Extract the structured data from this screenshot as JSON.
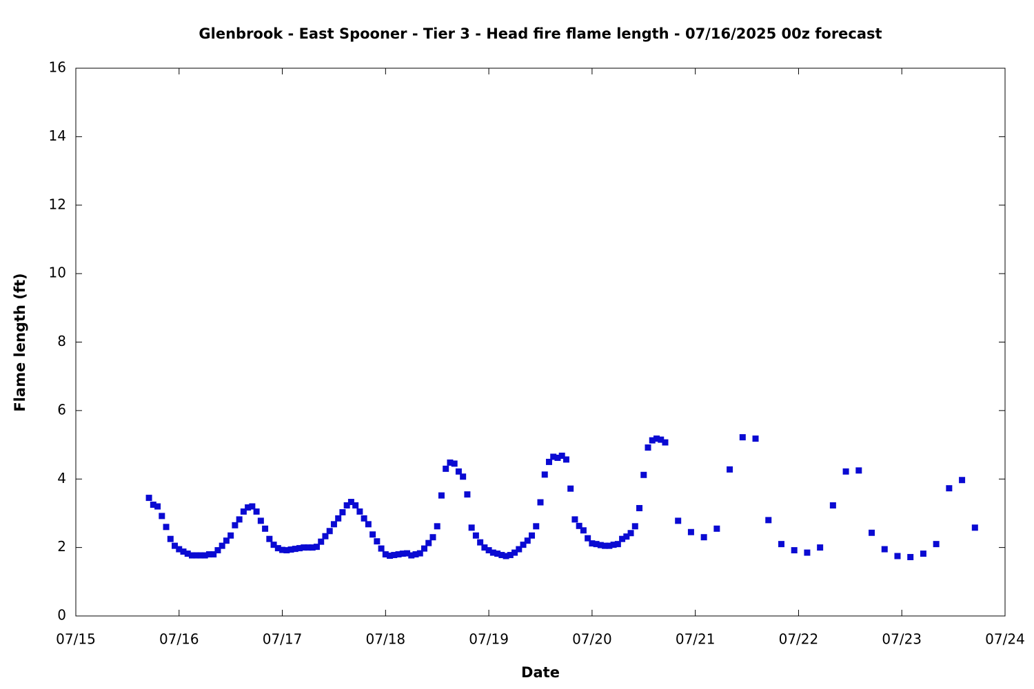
{
  "chart_data": {
    "type": "scatter",
    "title": "Glenbrook - East Spooner - Tier 3 - Head fire flame length - 07/16/2025 00z forecast",
    "xlabel": "Date",
    "ylabel": "Flame length (ft)",
    "xlim": [
      0,
      216
    ],
    "xticks": [
      {
        "value": 0,
        "label": "07/15"
      },
      {
        "value": 24,
        "label": "07/16"
      },
      {
        "value": 48,
        "label": "07/17"
      },
      {
        "value": 72,
        "label": "07/18"
      },
      {
        "value": 96,
        "label": "07/19"
      },
      {
        "value": 120,
        "label": "07/20"
      },
      {
        "value": 144,
        "label": "07/21"
      },
      {
        "value": 168,
        "label": "07/22"
      },
      {
        "value": 192,
        "label": "07/23"
      },
      {
        "value": 216,
        "label": "07/24"
      }
    ],
    "ylim": [
      0,
      16
    ],
    "yticks": [
      0,
      2,
      4,
      6,
      8,
      10,
      12,
      14,
      16
    ],
    "grid": false,
    "series": [
      {
        "color": "#0a0ad2",
        "x": [
          17,
          18,
          19,
          20,
          21,
          22,
          23,
          24,
          25,
          26,
          27,
          28,
          29,
          30,
          31,
          32,
          33,
          34,
          35,
          36,
          37,
          38,
          39,
          40,
          41,
          42,
          43,
          44,
          45,
          46,
          47,
          48,
          49,
          50,
          51,
          52,
          53,
          54,
          55,
          56,
          57,
          58,
          59,
          60,
          61,
          62,
          63,
          64,
          65,
          66,
          67,
          68,
          69,
          70,
          71,
          72,
          73,
          74,
          75,
          76,
          77,
          78,
          79,
          80,
          81,
          82,
          83,
          84,
          85,
          86,
          87,
          88,
          89,
          90,
          91,
          92,
          93,
          94,
          95,
          96,
          97,
          98,
          99,
          100,
          101,
          102,
          103,
          104,
          105,
          106,
          107,
          108,
          109,
          110,
          111,
          112,
          113,
          114,
          115,
          116,
          117,
          118,
          119,
          120,
          121,
          122,
          123,
          124,
          125,
          126,
          127,
          128,
          129,
          130,
          131,
          132,
          133,
          134,
          135,
          136,
          137,
          140,
          143,
          146,
          149,
          152,
          155,
          158,
          161,
          164,
          167,
          170,
          173,
          176,
          179,
          182,
          185,
          188,
          191,
          194,
          197,
          200,
          203,
          206,
          209
        ],
        "values": [
          3.45,
          3.25,
          3.2,
          2.92,
          2.6,
          2.25,
          2.05,
          1.95,
          1.88,
          1.82,
          1.77,
          1.77,
          1.77,
          1.77,
          1.8,
          1.8,
          1.92,
          2.05,
          2.2,
          2.35,
          2.65,
          2.82,
          3.05,
          3.17,
          3.2,
          3.05,
          2.78,
          2.55,
          2.25,
          2.08,
          1.98,
          1.93,
          1.92,
          1.94,
          1.96,
          1.98,
          2.0,
          2.0,
          2.0,
          2.02,
          2.17,
          2.33,
          2.48,
          2.68,
          2.85,
          3.03,
          3.23,
          3.33,
          3.23,
          3.05,
          2.85,
          2.68,
          2.38,
          2.18,
          1.97,
          1.8,
          1.76,
          1.78,
          1.8,
          1.82,
          1.83,
          1.77,
          1.8,
          1.83,
          1.97,
          2.13,
          2.3,
          2.62,
          3.52,
          4.3,
          4.48,
          4.45,
          4.22,
          4.07,
          3.55,
          2.58,
          2.35,
          2.15,
          2.0,
          1.92,
          1.85,
          1.82,
          1.78,
          1.75,
          1.78,
          1.85,
          1.95,
          2.08,
          2.2,
          2.35,
          2.62,
          3.32,
          4.13,
          4.5,
          4.65,
          4.62,
          4.68,
          4.57,
          3.72,
          2.82,
          2.63,
          2.5,
          2.27,
          2.12,
          2.1,
          2.07,
          2.05,
          2.05,
          2.08,
          2.1,
          2.25,
          2.32,
          2.42,
          2.62,
          3.15,
          4.12,
          4.92,
          5.13,
          5.18,
          5.15,
          5.07,
          2.78,
          2.45,
          2.3,
          2.55,
          4.28,
          5.22,
          5.18,
          2.8,
          2.1,
          1.92,
          1.85,
          2.0,
          3.23,
          4.22,
          4.25,
          2.43,
          1.95,
          1.75,
          1.72,
          1.82,
          2.1,
          3.73,
          3.97,
          2.58
        ]
      }
    ]
  }
}
